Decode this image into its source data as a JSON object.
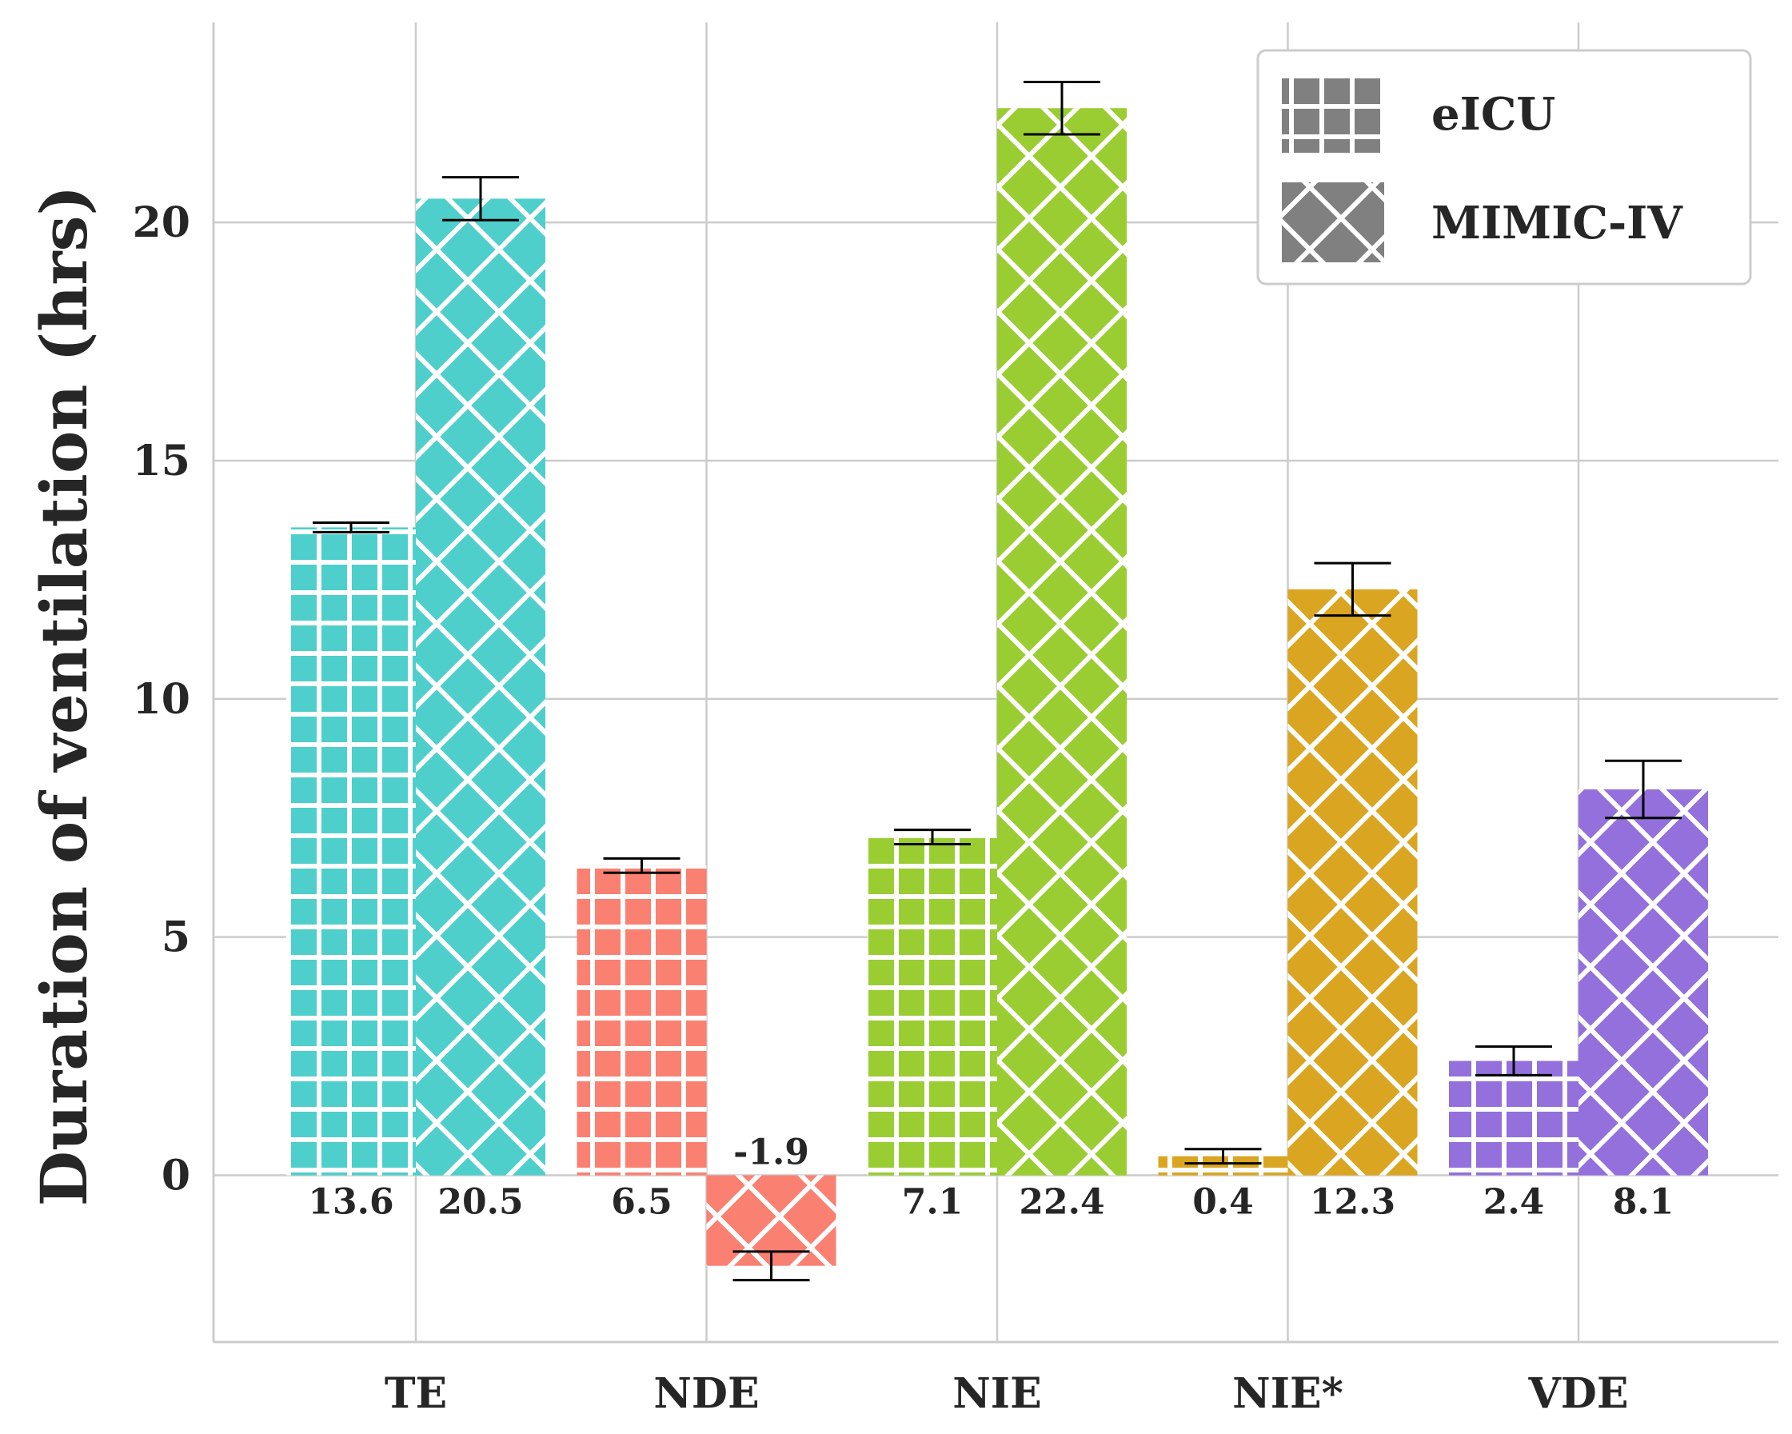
{
  "chart_data": {
    "type": "bar",
    "title": "",
    "xlabel": "",
    "ylabel": "Duration of ventilation (hrs)",
    "ylim": [
      -3.5,
      24.2
    ],
    "yticks": [
      0,
      5,
      10,
      15,
      20
    ],
    "grid": true,
    "legend_position": "top-right",
    "categories": [
      "TE",
      "NDE",
      "NIE",
      "NIE*",
      "VDE"
    ],
    "category_colors": [
      "#4ecfcb",
      "#fa8072",
      "#9acd32",
      "#daa520",
      "#9370db"
    ],
    "series": [
      {
        "name": "eICU",
        "pattern": "grid",
        "values": [
          13.6,
          6.5,
          7.1,
          0.4,
          2.4
        ],
        "labels": [
          "13.6",
          "6.5",
          "7.1",
          "0.4",
          "2.4"
        ],
        "error": [
          0.1,
          0.15,
          0.15,
          0.15,
          0.3
        ]
      },
      {
        "name": "MIMIC-IV",
        "pattern": "crosshatch",
        "values": [
          20.5,
          -1.9,
          22.4,
          12.3,
          8.1
        ],
        "labels": [
          "20.5",
          "-1.9",
          "22.4",
          "12.3",
          "8.1"
        ],
        "error": [
          0.45,
          0.3,
          0.55,
          0.55,
          0.6
        ]
      }
    ],
    "legend_swatch_color": "#808080"
  }
}
